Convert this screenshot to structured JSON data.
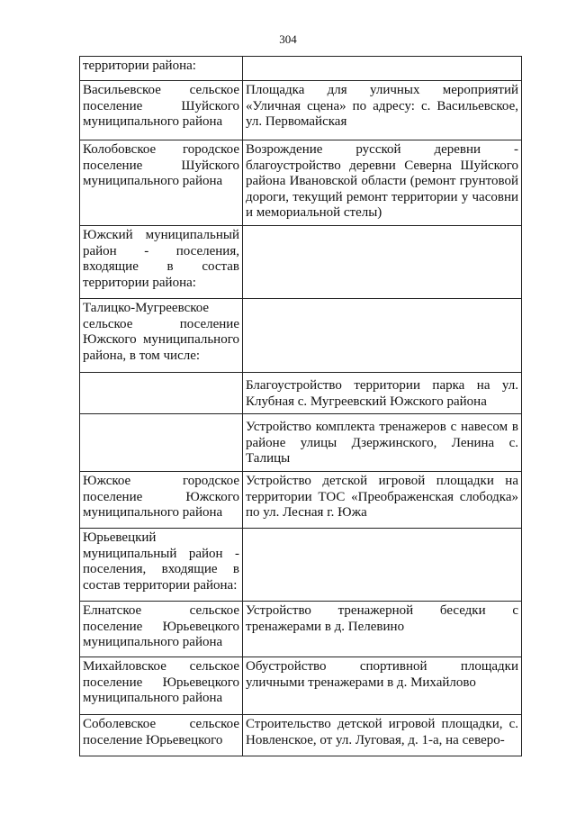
{
  "page_number": "304",
  "rows": [
    {
      "settlement": "территории района:",
      "project": ""
    },
    {
      "settlement": "Васильевское сельское поселение Шуйского муниципального района",
      "project": "Площадка для уличных мероприятий «Уличная сцена» по адресу: с. Васильевское, ул. Первомайская"
    },
    {
      "settlement": "Колобовское городское поселение Шуйского муниципального района",
      "project": "Возрождение русской деревни - благоустройство деревни Северна Шуйского района Ивановской области (ремонт грунтовой дороги, текущий ремонт территории у часовни и мемориальной стелы)"
    },
    {
      "settlement": "Южский муниципальный район - поселения, входящие в состав территории района:",
      "project": ""
    },
    {
      "settlement": "Талицко-Мугреевское сельское поселение Южского муниципального района, в том числе:",
      "project": ""
    },
    {
      "settlement": "",
      "project": "Благоустройство территории парка на ул. Клубная с. Мугреевский Южского района"
    },
    {
      "settlement": "",
      "project": "Устройство комплекта тренажеров с навесом в районе улицы Дзержинского, Ленина с. Талицы"
    },
    {
      "settlement": "Южское городское поселение Южского муниципального района",
      "project": "Устройство детской игровой площадки на территории ТОС «Преображенская слободка» по ул. Лесная г. Южа"
    },
    {
      "settlement": "Юрьевецкий муниципальный район - поселения, входящие в состав территории района:",
      "project": ""
    },
    {
      "settlement": "Елнатское сельское поселение Юрьевецкого муниципального района",
      "project": "Устройство тренажерной беседки с тренажерами в д. Пелевино"
    },
    {
      "settlement": "Михайловское сельское поселение Юрьевецкого муниципального района",
      "project": "Обустройство спортивной площадки уличными тренажерами в д. Михайлово"
    },
    {
      "settlement": "Соболевское сельское поселение Юрьевецкого",
      "project": "Строительство детской игровой площадки, с. Новленское, от ул. Луговая, д. 1-а, на северо-"
    }
  ]
}
